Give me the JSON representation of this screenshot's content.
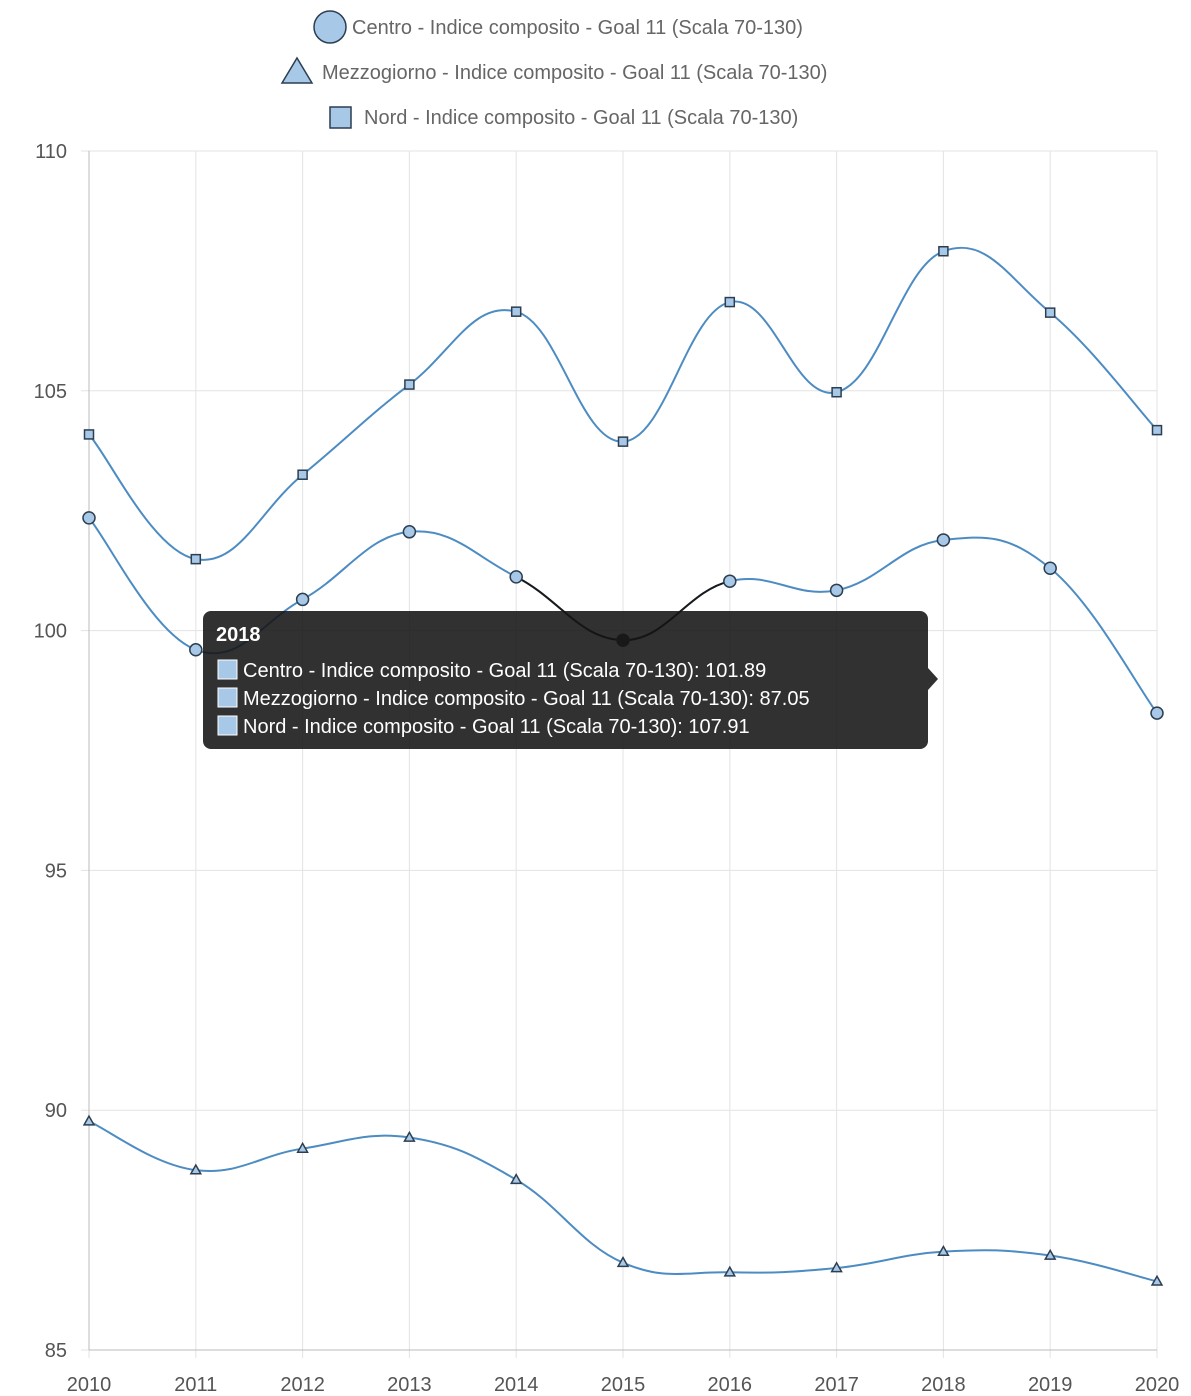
{
  "chart_data": {
    "type": "line",
    "x": [
      "2010",
      "2011",
      "2012",
      "2013",
      "2014",
      "2015",
      "2016",
      "2017",
      "2018",
      "2019",
      "2020"
    ],
    "ylim": [
      85,
      110
    ],
    "yticks": [
      "85",
      "90",
      "95",
      "100",
      "105",
      "110"
    ],
    "grid": true,
    "legend_position": "top",
    "series": [
      {
        "name": "Centro - Indice composito - Goal 11 (Scala 70-130)",
        "marker": "circle",
        "values": [
          102.35,
          99.6,
          100.65,
          102.06,
          101.12,
          99.8,
          101.03,
          100.84,
          101.89,
          101.3,
          98.28
        ]
      },
      {
        "name": "Mezzogiorno - Indice composito - Goal 11 (Scala 70-130)",
        "marker": "triangle",
        "values": [
          89.77,
          88.75,
          89.2,
          89.43,
          88.55,
          86.82,
          86.62,
          86.71,
          87.05,
          86.97,
          86.43
        ]
      },
      {
        "name": "Nord - Indice composito - Goal 11 (Scala 70-130)",
        "marker": "square",
        "values": [
          104.09,
          101.49,
          103.25,
          105.13,
          106.65,
          103.94,
          106.85,
          104.97,
          107.91,
          106.63,
          104.18
        ]
      }
    ],
    "colors": {
      "line": "#4d8cc2",
      "fill": "#a8c8e8",
      "marker_stroke": "#2c3e50",
      "hover_line": "#1a1a1a"
    },
    "tooltip": {
      "title": "2018",
      "lines": [
        "Centro - Indice composito - Goal 11 (Scala 70-130): 101.89",
        "Mezzogiorno - Indice composito - Goal 11 (Scala 70-130): 87.05",
        "Nord - Indice composito - Goal 11 (Scala 70-130): 107.91"
      ]
    }
  }
}
